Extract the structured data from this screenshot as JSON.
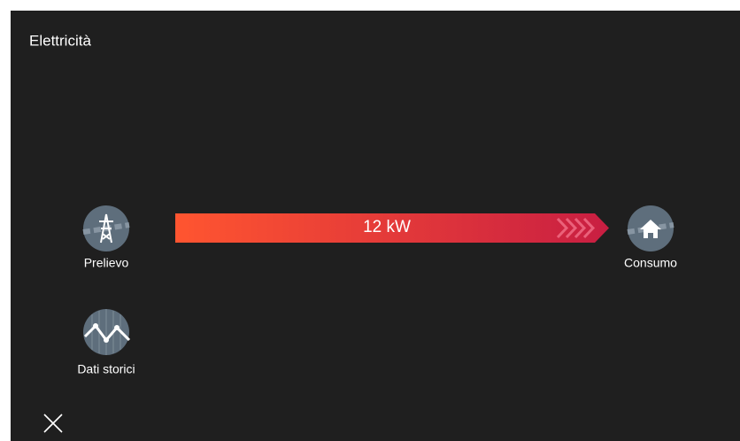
{
  "header": {
    "title": "Elettricità"
  },
  "flow": {
    "label": "12 kW"
  },
  "nodes": [
    {
      "label": "Prelievo"
    },
    {
      "label": "Consumo"
    },
    {
      "label": "Dati storici"
    }
  ]
}
